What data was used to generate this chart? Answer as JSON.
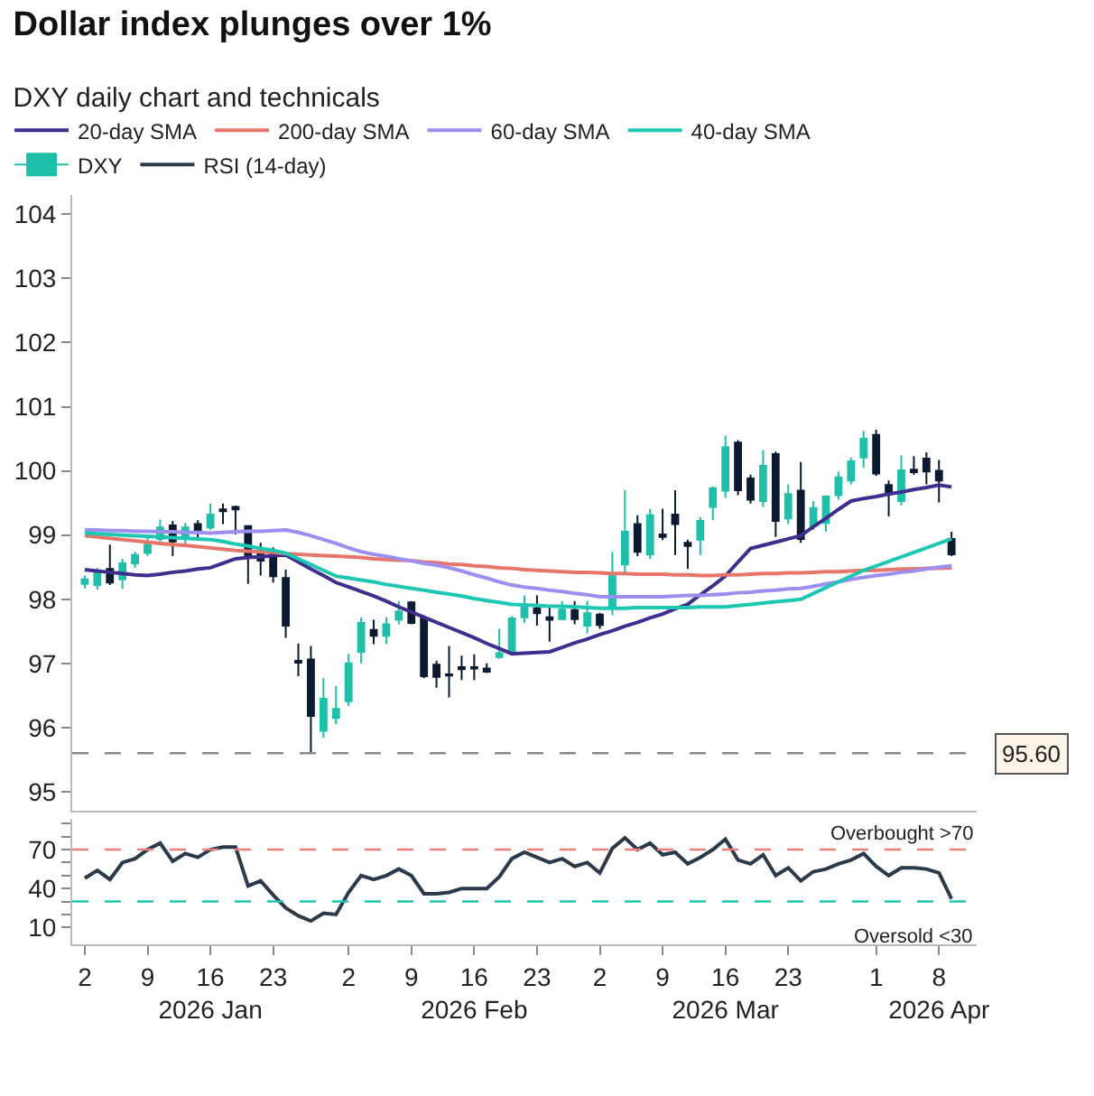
{
  "chart_data": [
    {
      "type": "candlestick",
      "title": "Dollar index plunges over 1%",
      "subtitle": "DXY daily chart and technicals",
      "legend": "top",
      "tick_labels": "y",
      "ylim": [
        94.7,
        104.3
      ],
      "yticks": [
        95,
        96,
        97,
        98,
        99,
        100,
        101,
        102,
        103,
        104
      ],
      "categories": [
        null,
        null,
        null,
        null,
        null,
        null,
        null,
        null,
        null,
        null,
        null,
        null,
        null,
        null,
        null,
        null,
        null,
        null,
        null,
        null,
        null,
        null,
        null,
        null,
        null,
        null,
        null,
        null,
        null,
        null,
        null,
        null,
        null,
        null,
        null,
        null,
        null,
        null,
        null,
        null,
        null,
        null,
        null,
        null,
        null,
        null,
        null,
        null,
        null,
        null,
        null,
        null,
        null,
        null,
        null,
        null,
        null,
        null,
        null,
        null,
        null,
        null,
        null,
        null,
        null,
        null,
        null,
        null,
        null,
        null
      ],
      "series": [
        {
          "name": "20-day SMA",
          "type": "line",
          "color": "#3f2d8f",
          "values": [
            98.46,
            98.44,
            98.42,
            98.4,
            98.38,
            98.37,
            98.39,
            98.42,
            98.44,
            98.47,
            98.49,
            98.56,
            98.63,
            98.65,
            98.66,
            98.68,
            98.69,
            98.58,
            98.47,
            98.37,
            98.26,
            98.19,
            98.12,
            98.05,
            97.97,
            97.88,
            97.8,
            97.72,
            97.64,
            97.56,
            97.48,
            97.4,
            97.31,
            97.23,
            97.15,
            97.16,
            97.17,
            97.18,
            97.25,
            97.32,
            97.38,
            97.45,
            97.51,
            97.58,
            97.64,
            97.71,
            97.77,
            97.85,
            97.92,
            98.07,
            98.21,
            98.36,
            98.58,
            98.79,
            98.84,
            98.89,
            98.94,
            98.99,
            99.13,
            99.26,
            99.4,
            99.53,
            99.57,
            99.6,
            99.64,
            99.67,
            99.71,
            99.74,
            99.78,
            99.75
          ]
        },
        {
          "name": "200-day SMA",
          "type": "line",
          "color": "#e8756a",
          "values": [
            98.99,
            98.97,
            98.95,
            98.93,
            98.91,
            98.89,
            98.87,
            98.85,
            98.84,
            98.82,
            98.8,
            98.78,
            98.76,
            98.75,
            98.74,
            98.73,
            98.71,
            98.7,
            98.69,
            98.68,
            98.67,
            98.66,
            98.65,
            98.63,
            98.62,
            98.61,
            98.6,
            98.58,
            98.57,
            98.55,
            98.54,
            98.52,
            98.51,
            98.49,
            98.48,
            98.46,
            98.45,
            98.44,
            98.43,
            98.42,
            98.42,
            98.41,
            98.4,
            98.4,
            98.39,
            98.39,
            98.39,
            98.38,
            98.38,
            98.37,
            98.37,
            98.38,
            98.38,
            98.39,
            98.4,
            98.4,
            98.41,
            98.41,
            98.42,
            98.43,
            98.43,
            98.44,
            98.45,
            98.45,
            98.46,
            98.47,
            98.47,
            98.48,
            98.48,
            98.49
          ]
        },
        {
          "name": "60-day SMA",
          "type": "line",
          "color": "#9d8ef2",
          "values": [
            99.08,
            99.08,
            99.07,
            99.07,
            99.06,
            99.06,
            99.05,
            99.05,
            99.04,
            99.04,
            99.03,
            99.04,
            99.05,
            99.06,
            99.06,
            99.07,
            99.08,
            99.04,
            98.99,
            98.93,
            98.87,
            98.8,
            98.74,
            98.7,
            98.67,
            98.63,
            98.6,
            98.56,
            98.53,
            98.49,
            98.44,
            98.38,
            98.33,
            98.27,
            98.22,
            98.19,
            98.17,
            98.14,
            98.12,
            98.09,
            98.07,
            98.04,
            98.04,
            98.04,
            98.04,
            98.04,
            98.04,
            98.05,
            98.06,
            98.06,
            98.07,
            98.08,
            98.1,
            98.11,
            98.13,
            98.14,
            98.16,
            98.17,
            98.2,
            98.24,
            98.27,
            98.31,
            98.34,
            98.37,
            98.39,
            98.42,
            98.44,
            98.47,
            98.5,
            98.52
          ]
        },
        {
          "name": "40-day SMA",
          "type": "line",
          "color": "#1dc7b2",
          "values": [
            99.03,
            99.02,
            99.01,
            99.0,
            98.99,
            98.98,
            98.97,
            98.96,
            98.95,
            98.94,
            98.93,
            98.9,
            98.86,
            98.83,
            98.79,
            98.76,
            98.72,
            98.63,
            98.54,
            98.45,
            98.36,
            98.33,
            98.3,
            98.27,
            98.23,
            98.2,
            98.17,
            98.14,
            98.11,
            98.08,
            98.05,
            98.01,
            97.98,
            97.95,
            97.92,
            97.91,
            97.9,
            97.89,
            97.89,
            97.88,
            97.87,
            97.86,
            97.86,
            97.86,
            97.87,
            97.87,
            97.87,
            97.87,
            97.87,
            97.88,
            97.88,
            97.88,
            97.9,
            97.92,
            97.94,
            97.96,
            97.98,
            98.0,
            98.09,
            98.18,
            98.27,
            98.36,
            98.45,
            98.52,
            98.59,
            98.66,
            98.73,
            98.8,
            98.87,
            98.94
          ]
        },
        {
          "name": "DXY",
          "colors": [
            "#1fbfa9",
            "#1fbfa9",
            "#0b1a30",
            "#1fbfa9",
            "#1fbfa9",
            "#1fbfa9",
            "#1fbfa9",
            "#0b1a30",
            "#1fbfa9",
            "#0b1a30",
            "#1fbfa9",
            "#0b1a30",
            "#0b1a30",
            "#0b1a30",
            "#0b1a30",
            "#0b1a30",
            "#0b1a30",
            "#0b1a30",
            "#0b1a30",
            "#1fbfa9",
            "#1fbfa9",
            "#1fbfa9",
            "#1fbfa9",
            "#0b1a30",
            "#1fbfa9",
            "#1fbfa9",
            "#0b1a30",
            "#0b1a30",
            "#0b1a30",
            "#0b1a30",
            "#0b1a30",
            "#0b1a30",
            "#0b1a30",
            "#1fbfa9",
            "#1fbfa9",
            "#1fbfa9",
            "#0b1a30",
            "#0b1a30",
            "#1fbfa9",
            "#0b1a30",
            "#1fbfa9",
            "#0b1a30",
            "#1fbfa9",
            "#1fbfa9",
            "#0b1a30",
            "#1fbfa9",
            "#0b1a30",
            "#0b1a30",
            "#0b1a30",
            "#1fbfa9",
            "#1fbfa9",
            "#1fbfa9",
            "#0b1a30",
            "#0b1a30",
            "#1fbfa9",
            "#0b1a30",
            "#1fbfa9",
            "#0b1a30",
            "#1fbfa9",
            "#1fbfa9",
            "#1fbfa9",
            "#1fbfa9",
            "#1fbfa9",
            "#0b1a30",
            "#0b1a30",
            "#1fbfa9",
            "#0b1a30",
            "#0b1a30",
            "#0b1a30",
            "#0b1a30"
          ],
          "ohlc": [
            [
              98.24,
              98.37,
              98.17,
              98.31
            ],
            [
              98.22,
              98.49,
              98.15,
              98.43
            ],
            [
              98.47,
              98.85,
              98.22,
              98.26
            ],
            [
              98.31,
              98.63,
              98.16,
              98.56
            ],
            [
              98.56,
              98.74,
              98.49,
              98.69
            ],
            [
              98.72,
              98.96,
              98.67,
              98.85
            ],
            [
              98.94,
              99.24,
              98.88,
              99.12
            ],
            [
              99.15,
              99.22,
              98.67,
              98.9
            ],
            [
              98.94,
              99.19,
              98.85,
              99.12
            ],
            [
              99.17,
              99.23,
              98.94,
              99.08
            ],
            [
              99.12,
              99.49,
              99.08,
              99.32
            ],
            [
              99.4,
              99.49,
              99.17,
              99.37
            ],
            [
              99.44,
              99.46,
              99.01,
              99.4
            ],
            [
              99.14,
              99.14,
              98.24,
              98.65
            ],
            [
              98.72,
              98.88,
              98.37,
              98.6
            ],
            [
              98.76,
              98.81,
              98.26,
              98.36
            ],
            [
              98.33,
              98.46,
              97.4,
              97.59
            ],
            [
              97.04,
              97.31,
              96.8,
              97.01
            ],
            [
              97.06,
              97.27,
              95.6,
              96.18
            ],
            [
              95.95,
              96.77,
              95.84,
              96.45
            ],
            [
              96.15,
              96.65,
              96.05,
              96.29
            ],
            [
              96.41,
              97.15,
              96.34,
              97.0
            ],
            [
              97.18,
              97.72,
              97.0,
              97.63
            ],
            [
              97.52,
              97.68,
              97.3,
              97.43
            ],
            [
              97.43,
              97.72,
              97.3,
              97.61
            ],
            [
              97.68,
              97.97,
              97.61,
              97.81
            ],
            [
              97.95,
              97.97,
              97.61,
              97.63
            ],
            [
              97.7,
              97.74,
              96.77,
              96.8
            ],
            [
              96.98,
              97.04,
              96.62,
              96.79
            ],
            [
              96.83,
              97.27,
              96.47,
              96.81
            ],
            [
              96.94,
              97.12,
              96.74,
              96.91
            ],
            [
              96.94,
              97.14,
              96.74,
              96.92
            ],
            [
              96.92,
              97.0,
              96.85,
              96.87
            ],
            [
              97.1,
              97.54,
              97.07,
              97.16
            ],
            [
              97.16,
              97.74,
              97.12,
              97.7
            ],
            [
              97.72,
              98.06,
              97.63,
              97.9
            ],
            [
              97.86,
              98.06,
              97.59,
              97.78
            ],
            [
              97.72,
              97.9,
              97.34,
              97.68
            ],
            [
              97.69,
              97.97,
              97.68,
              97.84
            ],
            [
              97.83,
              97.97,
              97.61,
              97.69
            ],
            [
              97.59,
              97.97,
              97.47,
              97.78
            ],
            [
              97.76,
              97.79,
              97.54,
              97.6
            ],
            [
              97.86,
              98.74,
              97.75,
              98.36
            ],
            [
              98.54,
              99.7,
              98.42,
              99.05
            ],
            [
              99.17,
              99.31,
              98.67,
              98.74
            ],
            [
              98.7,
              99.41,
              98.63,
              99.31
            ],
            [
              99.01,
              99.41,
              98.92,
              98.97
            ],
            [
              99.32,
              99.7,
              98.69,
              99.17
            ],
            [
              98.88,
              98.93,
              98.47,
              98.83
            ],
            [
              98.93,
              99.28,
              98.69,
              99.22
            ],
            [
              99.44,
              99.76,
              99.23,
              99.73
            ],
            [
              99.69,
              100.55,
              99.58,
              100.37
            ],
            [
              100.44,
              100.48,
              99.62,
              99.7
            ],
            [
              99.88,
              99.94,
              99.49,
              99.55
            ],
            [
              99.53,
              100.32,
              99.44,
              100.08
            ],
            [
              100.26,
              100.3,
              98.97,
              99.22
            ],
            [
              99.26,
              99.79,
              99.17,
              99.64
            ],
            [
              99.69,
              100.14,
              98.88,
              98.94
            ],
            [
              99.14,
              99.53,
              99.08,
              99.42
            ],
            [
              99.19,
              99.62,
              99.05,
              99.6
            ],
            [
              99.62,
              99.99,
              99.55,
              99.9
            ],
            [
              99.85,
              100.21,
              99.79,
              100.15
            ],
            [
              100.21,
              100.62,
              100.05,
              100.5
            ],
            [
              100.56,
              100.64,
              99.92,
              99.96
            ],
            [
              99.78,
              99.85,
              99.29,
              99.65
            ],
            [
              99.53,
              100.24,
              99.46,
              100.01
            ],
            [
              100.02,
              100.23,
              99.94,
              99.98
            ],
            [
              100.19,
              100.29,
              99.79,
              99.99
            ],
            [
              100.0,
              100.17,
              99.51,
              99.85
            ],
            [
              98.94,
              99.05,
              98.67,
              98.7
            ]
          ]
        }
      ],
      "ref_lines": [
        {
          "axis": "y",
          "value": 95.6,
          "label": "95.60",
          "color": "#8a8a8a",
          "line_style": "dashed"
        }
      ]
    },
    {
      "type": "line",
      "legend": "top",
      "ylim": [
        -3,
        94
      ],
      "yticks": [
        10,
        {
          "value": 20,
          "label": null
        },
        {
          "value": 30,
          "label": null
        },
        40,
        {
          "value": 50,
          "label": null
        },
        {
          "value": 60,
          "label": null
        },
        70,
        {
          "value": 80,
          "label": null
        },
        {
          "value": 90,
          "label": null
        }
      ],
      "categories": [
        "2",
        null,
        null,
        null,
        null,
        "9",
        null,
        null,
        null,
        null,
        "16\n2026 Jan",
        null,
        null,
        null,
        null,
        "23",
        null,
        null,
        null,
        null,
        null,
        "2",
        null,
        null,
        null,
        null,
        "9",
        null,
        null,
        null,
        null,
        "16\n2026 Feb",
        null,
        null,
        null,
        null,
        "23",
        null,
        null,
        null,
        null,
        "2",
        null,
        null,
        null,
        null,
        "9",
        null,
        null,
        null,
        null,
        "16\n2026 Mar",
        null,
        null,
        null,
        null,
        "23",
        null,
        null,
        null,
        null,
        null,
        null,
        "1",
        null,
        null,
        null,
        null,
        "8\n2026 Apr",
        null
      ],
      "series": [
        {
          "name": "RSI (14-day)",
          "color": "#2b3a4a",
          "values": [
            48,
            54,
            47,
            60,
            63,
            70,
            75,
            61,
            67,
            64,
            70,
            72,
            72,
            42,
            46,
            35,
            25,
            19,
            15,
            21,
            20,
            37,
            50,
            47,
            50,
            55,
            50,
            36,
            36,
            37,
            40,
            40,
            40,
            49,
            63,
            68,
            64,
            60,
            63,
            57,
            60,
            52,
            71,
            79,
            70,
            75,
            66,
            68,
            59,
            64,
            70,
            78,
            62,
            59,
            66,
            50,
            56,
            46,
            53,
            55,
            59,
            62,
            67,
            57,
            50,
            56,
            56,
            55,
            52,
            32
          ]
        }
      ],
      "ref_lines": [
        {
          "axis": "y",
          "value": 70,
          "label": "Overbought >70",
          "color": "#ef7f7a",
          "line_style": "dashed"
        },
        {
          "axis": "y",
          "value": 30,
          "label": "Oversold <30",
          "color": "#1dc7b2",
          "line_style": "dashed"
        }
      ]
    }
  ]
}
